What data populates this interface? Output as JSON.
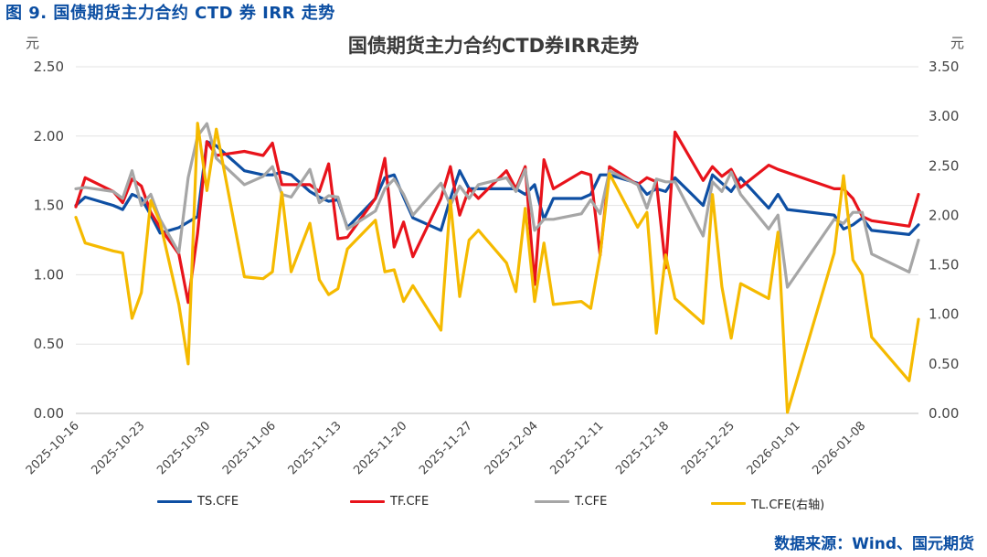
{
  "header": {
    "figure_label": "图 9. 国债期货主力合约 CTD 券 IRR 走势"
  },
  "source_note": "数据来源：Wind、国元期货",
  "colors": {
    "TS": "#0E4FA3",
    "TF": "#E8131B",
    "T": "#A6A6A6",
    "TL": "#F5BA00",
    "header": "#0B4EA2",
    "grid": "#E3E3E3"
  },
  "chart_data": {
    "type": "line",
    "title": "国债期货主力合约CTD券IRR走势",
    "left_unit": "元",
    "right_unit": "元",
    "y_left": {
      "min": 0,
      "max": 2.5,
      "ticks": [
        "0.00",
        "0.50",
        "1.00",
        "1.50",
        "2.00",
        "2.50"
      ]
    },
    "y_right": {
      "min": 0,
      "max": 3.5,
      "ticks": [
        "0.00",
        "0.50",
        "1.00",
        "1.50",
        "2.00",
        "2.50",
        "3.00",
        "3.50"
      ]
    },
    "x_range": [
      "2025-10-16",
      "2026-01-14"
    ],
    "x_ticks": [
      "2025-10-16",
      "2025-10-23",
      "2025-10-30",
      "2025-11-06",
      "2025-11-13",
      "2025-11-20",
      "2025-11-27",
      "2025-12-04",
      "2025-12-11",
      "2025-12-18",
      "2025-12-25",
      "2026-01-01",
      "2026-01-08"
    ],
    "legend": [
      "TS.CFE",
      "TF.CFE",
      "T.CFE",
      "TL.CFE(右轴)"
    ],
    "series": [
      {
        "name": "TS.CFE",
        "axis": "left",
        "key": "TS",
        "points": [
          [
            "2025-10-16",
            1.5
          ],
          [
            "2025-10-17",
            1.56
          ],
          [
            "2025-10-20",
            1.5
          ],
          [
            "2025-10-21",
            1.47
          ],
          [
            "2025-10-22",
            1.58
          ],
          [
            "2025-10-23",
            1.55
          ],
          [
            "2025-10-24",
            1.43
          ],
          [
            "2025-10-25",
            1.3
          ],
          [
            "2025-10-27",
            1.34
          ],
          [
            "2025-10-28",
            1.38
          ],
          [
            "2025-10-29",
            1.42
          ],
          [
            "2025-10-30",
            1.96
          ],
          [
            "2025-10-31",
            1.93
          ],
          [
            "2025-11-03",
            1.75
          ],
          [
            "2025-11-05",
            1.72
          ],
          [
            "2025-11-06",
            1.72
          ],
          [
            "2025-11-07",
            1.74
          ],
          [
            "2025-11-08",
            1.72
          ],
          [
            "2025-11-10",
            1.6
          ],
          [
            "2025-11-11",
            1.56
          ],
          [
            "2025-11-12",
            1.53
          ],
          [
            "2025-11-13",
            1.54
          ],
          [
            "2025-11-14",
            1.34
          ],
          [
            "2025-11-17",
            1.55
          ],
          [
            "2025-11-18",
            1.7
          ],
          [
            "2025-11-19",
            1.72
          ],
          [
            "2025-11-20",
            1.56
          ],
          [
            "2025-11-21",
            1.41
          ],
          [
            "2025-11-24",
            1.32
          ],
          [
            "2025-11-25",
            1.55
          ],
          [
            "2025-11-26",
            1.75
          ],
          [
            "2025-11-27",
            1.62
          ],
          [
            "2025-11-28",
            1.62
          ],
          [
            "2025-12-01",
            1.62
          ],
          [
            "2025-12-02",
            1.62
          ],
          [
            "2025-12-03",
            1.58
          ],
          [
            "2025-12-04",
            1.65
          ],
          [
            "2025-12-05",
            1.4
          ],
          [
            "2025-12-06",
            1.55
          ],
          [
            "2025-12-09",
            1.55
          ],
          [
            "2025-12-10",
            1.58
          ],
          [
            "2025-12-11",
            1.72
          ],
          [
            "2025-12-12",
            1.72
          ],
          [
            "2025-12-15",
            1.66
          ],
          [
            "2025-12-16",
            1.58
          ],
          [
            "2025-12-17",
            1.62
          ],
          [
            "2025-12-18",
            1.6
          ],
          [
            "2025-12-19",
            1.7
          ],
          [
            "2025-12-22",
            1.5
          ],
          [
            "2025-12-23",
            1.72
          ],
          [
            "2025-12-24",
            1.66
          ],
          [
            "2025-12-25",
            1.6
          ],
          [
            "2025-12-26",
            1.7
          ],
          [
            "2025-12-29",
            1.48
          ],
          [
            "2025-12-30",
            1.58
          ],
          [
            "2025-12-31",
            1.47
          ],
          [
            "2026-01-05",
            1.43
          ],
          [
            "2026-01-06",
            1.33
          ],
          [
            "2026-01-07",
            1.36
          ],
          [
            "2026-01-08",
            1.41
          ],
          [
            "2026-01-09",
            1.32
          ],
          [
            "2026-01-13",
            1.29
          ],
          [
            "2026-01-14",
            1.36
          ]
        ]
      },
      {
        "name": "TF.CFE",
        "axis": "left",
        "key": "TF",
        "points": [
          [
            "2025-10-16",
            1.49
          ],
          [
            "2025-10-17",
            1.7
          ],
          [
            "2025-10-20",
            1.6
          ],
          [
            "2025-10-21",
            1.52
          ],
          [
            "2025-10-22",
            1.69
          ],
          [
            "2025-10-23",
            1.64
          ],
          [
            "2025-10-24",
            1.45
          ],
          [
            "2025-10-25",
            1.34
          ],
          [
            "2025-10-27",
            1.15
          ],
          [
            "2025-10-28",
            0.8
          ],
          [
            "2025-10-29",
            1.3
          ],
          [
            "2025-10-30",
            1.96
          ],
          [
            "2025-10-31",
            1.86
          ],
          [
            "2025-11-03",
            1.89
          ],
          [
            "2025-11-05",
            1.86
          ],
          [
            "2025-11-06",
            1.95
          ],
          [
            "2025-11-07",
            1.65
          ],
          [
            "2025-11-08",
            1.65
          ],
          [
            "2025-11-10",
            1.65
          ],
          [
            "2025-11-11",
            1.6
          ],
          [
            "2025-11-12",
            1.8
          ],
          [
            "2025-11-13",
            1.26
          ],
          [
            "2025-11-14",
            1.27
          ],
          [
            "2025-11-17",
            1.55
          ],
          [
            "2025-11-18",
            1.84
          ],
          [
            "2025-11-19",
            1.2
          ],
          [
            "2025-11-20",
            1.38
          ],
          [
            "2025-11-21",
            1.13
          ],
          [
            "2025-11-24",
            1.55
          ],
          [
            "2025-11-25",
            1.78
          ],
          [
            "2025-11-26",
            1.43
          ],
          [
            "2025-11-27",
            1.62
          ],
          [
            "2025-11-28",
            1.55
          ],
          [
            "2025-12-01",
            1.75
          ],
          [
            "2025-12-02",
            1.62
          ],
          [
            "2025-12-03",
            1.78
          ],
          [
            "2025-12-04",
            0.93
          ],
          [
            "2025-12-05",
            1.83
          ],
          [
            "2025-12-06",
            1.62
          ],
          [
            "2025-12-09",
            1.74
          ],
          [
            "2025-12-10",
            1.72
          ],
          [
            "2025-12-11",
            1.14
          ],
          [
            "2025-12-12",
            1.78
          ],
          [
            "2025-12-15",
            1.65
          ],
          [
            "2025-12-16",
            1.7
          ],
          [
            "2025-12-17",
            1.67
          ],
          [
            "2025-12-18",
            1.05
          ],
          [
            "2025-12-19",
            2.03
          ],
          [
            "2025-12-22",
            1.68
          ],
          [
            "2025-12-23",
            1.78
          ],
          [
            "2025-12-24",
            1.71
          ],
          [
            "2025-12-25",
            1.76
          ],
          [
            "2025-12-26",
            1.63
          ],
          [
            "2025-12-29",
            1.79
          ],
          [
            "2025-12-30",
            1.76
          ],
          [
            "2026-01-05",
            1.62
          ],
          [
            "2026-01-06",
            1.62
          ],
          [
            "2026-01-07",
            1.55
          ],
          [
            "2026-01-08",
            1.42
          ],
          [
            "2026-01-09",
            1.39
          ],
          [
            "2026-01-13",
            1.35
          ],
          [
            "2026-01-14",
            1.58
          ]
        ]
      },
      {
        "name": "T.CFE",
        "axis": "left",
        "key": "T",
        "points": [
          [
            "2025-10-16",
            1.62
          ],
          [
            "2025-10-17",
            1.63
          ],
          [
            "2025-10-20",
            1.6
          ],
          [
            "2025-10-21",
            1.55
          ],
          [
            "2025-10-22",
            1.75
          ],
          [
            "2025-10-23",
            1.5
          ],
          [
            "2025-10-24",
            1.58
          ],
          [
            "2025-10-25",
            1.4
          ],
          [
            "2025-10-27",
            1.16
          ],
          [
            "2025-10-28",
            1.7
          ],
          [
            "2025-10-29",
            2.0
          ],
          [
            "2025-10-30",
            2.09
          ],
          [
            "2025-10-31",
            1.84
          ],
          [
            "2025-11-03",
            1.65
          ],
          [
            "2025-11-05",
            1.71
          ],
          [
            "2025-11-06",
            1.78
          ],
          [
            "2025-11-07",
            1.58
          ],
          [
            "2025-11-08",
            1.56
          ],
          [
            "2025-11-10",
            1.76
          ],
          [
            "2025-11-11",
            1.52
          ],
          [
            "2025-11-12",
            1.57
          ],
          [
            "2025-11-13",
            1.56
          ],
          [
            "2025-11-14",
            1.33
          ],
          [
            "2025-11-17",
            1.46
          ],
          [
            "2025-11-18",
            1.62
          ],
          [
            "2025-11-19",
            1.69
          ],
          [
            "2025-11-20",
            1.58
          ],
          [
            "2025-11-21",
            1.43
          ],
          [
            "2025-11-24",
            1.66
          ],
          [
            "2025-11-25",
            1.5
          ],
          [
            "2025-11-26",
            1.64
          ],
          [
            "2025-11-27",
            1.55
          ],
          [
            "2025-11-28",
            1.65
          ],
          [
            "2025-12-01",
            1.7
          ],
          [
            "2025-12-02",
            1.6
          ],
          [
            "2025-12-03",
            1.76
          ],
          [
            "2025-12-04",
            1.32
          ],
          [
            "2025-12-05",
            1.4
          ],
          [
            "2025-12-06",
            1.4
          ],
          [
            "2025-12-09",
            1.44
          ],
          [
            "2025-12-10",
            1.54
          ],
          [
            "2025-12-11",
            1.44
          ],
          [
            "2025-12-12",
            1.75
          ],
          [
            "2025-12-15",
            1.65
          ],
          [
            "2025-12-16",
            1.48
          ],
          [
            "2025-12-17",
            1.69
          ],
          [
            "2025-12-18",
            1.67
          ],
          [
            "2025-12-19",
            1.67
          ],
          [
            "2025-12-22",
            1.28
          ],
          [
            "2025-12-23",
            1.67
          ],
          [
            "2025-12-24",
            1.6
          ],
          [
            "2025-12-25",
            1.74
          ],
          [
            "2025-12-26",
            1.58
          ],
          [
            "2025-12-29",
            1.33
          ],
          [
            "2025-12-30",
            1.43
          ],
          [
            "2025-12-31",
            0.91
          ],
          [
            "2026-01-05",
            1.4
          ],
          [
            "2026-01-06",
            1.37
          ],
          [
            "2026-01-07",
            1.45
          ],
          [
            "2026-01-08",
            1.45
          ],
          [
            "2026-01-09",
            1.15
          ],
          [
            "2026-01-13",
            1.02
          ],
          [
            "2026-01-14",
            1.25
          ]
        ]
      },
      {
        "name": "TL.CFE(右轴)",
        "axis": "right",
        "key": "TL",
        "points": [
          [
            "2025-10-16",
            1.98
          ],
          [
            "2025-10-17",
            1.72
          ],
          [
            "2025-10-20",
            1.64
          ],
          [
            "2025-10-21",
            1.62
          ],
          [
            "2025-10-22",
            0.96
          ],
          [
            "2025-10-23",
            1.22
          ],
          [
            "2025-10-24",
            2.15
          ],
          [
            "2025-10-25",
            1.93
          ],
          [
            "2025-10-27",
            1.1
          ],
          [
            "2025-10-28",
            0.5
          ],
          [
            "2025-10-29",
            2.93
          ],
          [
            "2025-10-30",
            2.25
          ],
          [
            "2025-10-31",
            2.87
          ],
          [
            "2025-11-03",
            1.38
          ],
          [
            "2025-11-05",
            1.36
          ],
          [
            "2025-11-06",
            1.43
          ],
          [
            "2025-11-07",
            2.23
          ],
          [
            "2025-11-08",
            1.43
          ],
          [
            "2025-11-10",
            1.92
          ],
          [
            "2025-11-11",
            1.35
          ],
          [
            "2025-11-12",
            1.2
          ],
          [
            "2025-11-13",
            1.26
          ],
          [
            "2025-11-14",
            1.66
          ],
          [
            "2025-11-17",
            1.95
          ],
          [
            "2025-11-18",
            1.43
          ],
          [
            "2025-11-19",
            1.45
          ],
          [
            "2025-11-20",
            1.13
          ],
          [
            "2025-11-21",
            1.29
          ],
          [
            "2025-11-24",
            0.84
          ],
          [
            "2025-11-25",
            2.15
          ],
          [
            "2025-11-26",
            1.18
          ],
          [
            "2025-11-27",
            1.75
          ],
          [
            "2025-11-28",
            1.85
          ],
          [
            "2025-12-01",
            1.52
          ],
          [
            "2025-12-02",
            1.23
          ],
          [
            "2025-12-03",
            2.07
          ],
          [
            "2025-12-04",
            1.13
          ],
          [
            "2025-12-05",
            1.72
          ],
          [
            "2025-12-06",
            1.1
          ],
          [
            "2025-12-09",
            1.13
          ],
          [
            "2025-12-10",
            1.06
          ],
          [
            "2025-12-11",
            1.6
          ],
          [
            "2025-12-12",
            2.42
          ],
          [
            "2025-12-15",
            1.88
          ],
          [
            "2025-12-16",
            2.03
          ],
          [
            "2025-12-17",
            0.81
          ],
          [
            "2025-12-18",
            1.6
          ],
          [
            "2025-12-19",
            1.16
          ],
          [
            "2025-12-22",
            0.91
          ],
          [
            "2025-12-23",
            2.21
          ],
          [
            "2025-12-24",
            1.28
          ],
          [
            "2025-12-25",
            0.76
          ],
          [
            "2025-12-26",
            1.31
          ],
          [
            "2025-12-29",
            1.16
          ],
          [
            "2025-12-30",
            1.83
          ],
          [
            "2025-12-31",
            0.01
          ],
          [
            "2026-01-05",
            1.62
          ],
          [
            "2026-01-06",
            2.4
          ],
          [
            "2026-01-07",
            1.55
          ],
          [
            "2026-01-08",
            1.4
          ],
          [
            "2026-01-09",
            0.77
          ],
          [
            "2026-01-13",
            0.33
          ],
          [
            "2026-01-14",
            0.95
          ]
        ]
      }
    ]
  }
}
